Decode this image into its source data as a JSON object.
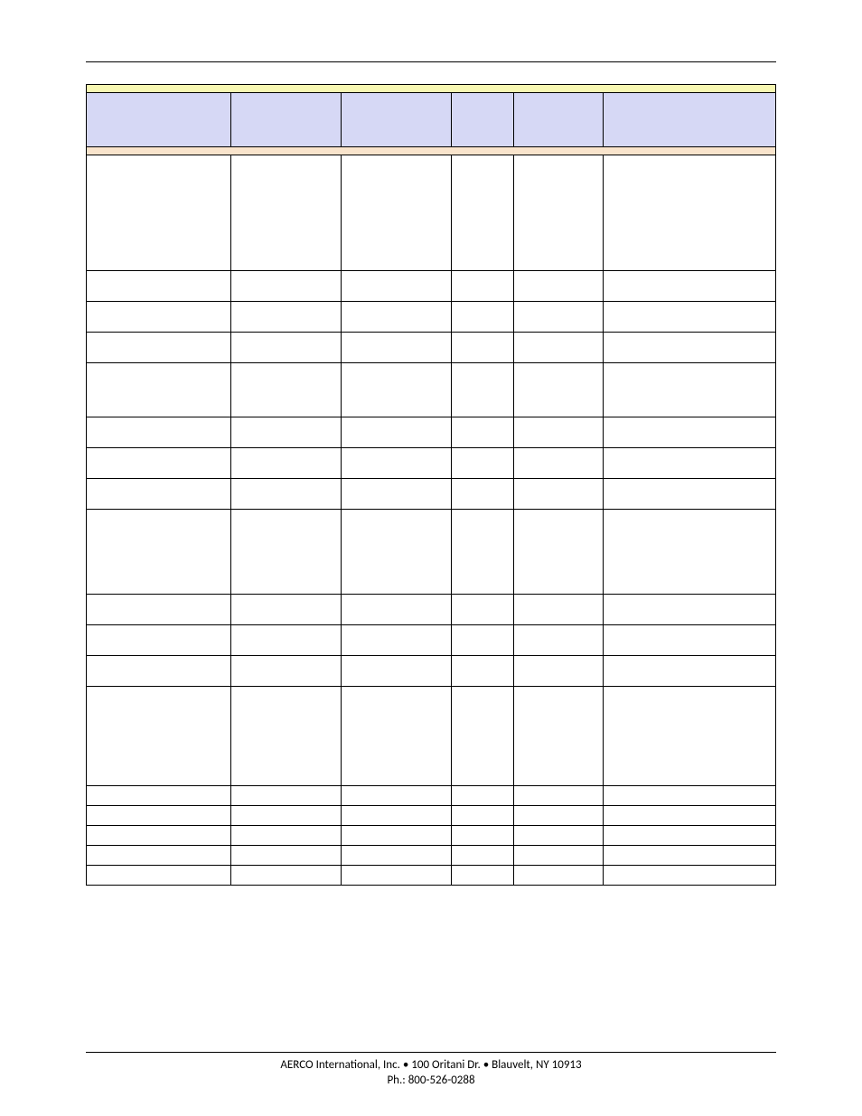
{
  "table": {
    "title": "",
    "headers": [
      "",
      "",
      "",
      "",
      "",
      ""
    ],
    "section": "",
    "rows": [
      [
        "",
        "",
        "",
        "",
        "",
        ""
      ],
      [
        "",
        "",
        "",
        "",
        "",
        ""
      ],
      [
        "",
        "",
        "",
        "",
        "",
        ""
      ],
      [
        "",
        "",
        "",
        "",
        "",
        ""
      ],
      [
        "",
        "",
        "",
        "",
        "",
        ""
      ],
      [
        "",
        "",
        "",
        "",
        "",
        ""
      ],
      [
        "",
        "",
        "",
        "",
        "",
        ""
      ],
      [
        "",
        "",
        "",
        "",
        "",
        ""
      ],
      [
        "",
        "",
        "",
        "",
        "",
        ""
      ],
      [
        "",
        "",
        "",
        "",
        "",
        ""
      ],
      [
        "",
        "",
        "",
        "",
        "",
        ""
      ],
      [
        "",
        "",
        "",
        "",
        "",
        ""
      ],
      [
        "",
        "",
        "",
        "",
        "",
        ""
      ],
      [
        "",
        "",
        "",
        "",
        "",
        ""
      ],
      [
        "",
        "",
        "",
        "",
        "",
        ""
      ],
      [
        "",
        "",
        "",
        "",
        "",
        ""
      ],
      [
        "",
        "",
        "",
        "",
        "",
        ""
      ],
      [
        "",
        "",
        "",
        "",
        "",
        ""
      ]
    ],
    "colors": {
      "title_bg": "#f7f7b2",
      "header_bg": "#d6d8f5",
      "section_bg": "#f9e4cc",
      "border": "#000000"
    },
    "col_widths_pct": [
      21,
      16,
      16,
      9,
      13,
      25
    ]
  },
  "footer": {
    "line1": "AERCO International, Inc. • 100 Oritani Dr. •  Blauvelt, NY 10913",
    "line2": "Ph.: 800-526-0288"
  }
}
